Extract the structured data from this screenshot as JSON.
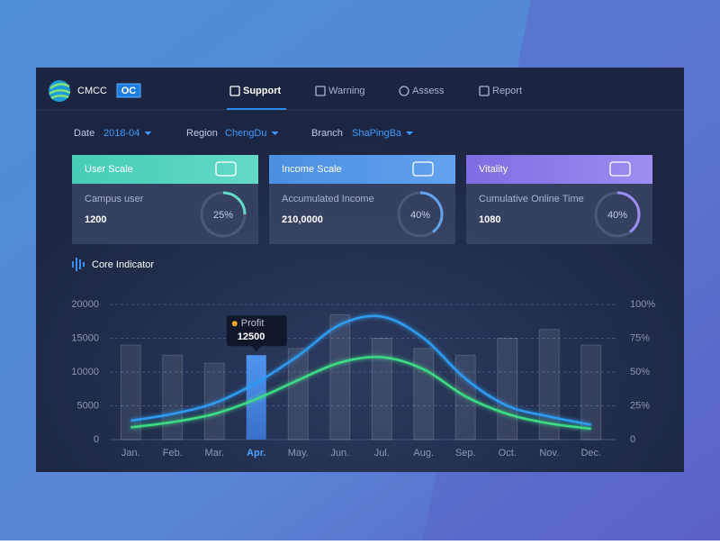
{
  "header": {
    "brand": "CMCC",
    "badge": "OC",
    "nav": [
      "Support",
      "Warning",
      "Assess",
      "Report"
    ],
    "active": 0
  },
  "filters": [
    {
      "label": "Date",
      "value": "2018-04"
    },
    {
      "label": "Region",
      "value": "ChengDu"
    },
    {
      "label": "Branch",
      "value": "ShaPingBa"
    }
  ],
  "cards": [
    {
      "title": "User Scale",
      "label": "Campus user",
      "value": "1200",
      "percent": 25,
      "percent_label": "25%",
      "color": "#45cdb7",
      "color2": "#63d9c6"
    },
    {
      "title": "Income Scale",
      "label": "Accumulated Income",
      "value": "210,0000",
      "percent": 40,
      "percent_label": "40%",
      "color": "#4b8fe2",
      "color2": "#62a2ee"
    },
    {
      "title": "Vitality",
      "label": "Cumulative Online Time",
      "value": "1080",
      "percent": 40,
      "percent_label": "40%",
      "color": "#7e6de2",
      "color2": "#9c8ef1"
    }
  ],
  "section_title": "Core Indicator",
  "chart_data": {
    "type": "bar-line",
    "categories": [
      "Jan.",
      "Feb.",
      "Mar.",
      "Apr.",
      "May.",
      "Jun.",
      "Jul.",
      "Aug.",
      "Sep.",
      "Oct.",
      "Nov.",
      "Dec."
    ],
    "series": [
      {
        "name": "Profit",
        "type": "bar",
        "color": "#4a8fe8",
        "values": [
          14000,
          12500,
          11300,
          12500,
          13500,
          18500,
          15000,
          13500,
          12500,
          15000,
          16300,
          14000
        ]
      },
      {
        "type": "line",
        "axis": "y2",
        "color": "#2d9bf0",
        "values": [
          14,
          19,
          27,
          42,
          62,
          85,
          91,
          75,
          45,
          25,
          17,
          11
        ]
      },
      {
        "type": "line",
        "axis": "y2",
        "color": "#3ddc84",
        "values": [
          9,
          13,
          19,
          30,
          44,
          57,
          61,
          52,
          32,
          19,
          12,
          8
        ]
      }
    ],
    "highlight": 3,
    "ylim": [
      0,
      20000
    ],
    "yticks": [
      0,
      5000,
      10000,
      15000,
      20000
    ],
    "y2lim": [
      0,
      100
    ],
    "y2ticks": [
      0,
      {
        "value": 25,
        "label": "25%"
      },
      {
        "value": 50,
        "label": "50%"
      },
      {
        "value": 75,
        "label": "75%"
      },
      {
        "value": 100,
        "label": "100%"
      }
    ],
    "grid": true
  }
}
